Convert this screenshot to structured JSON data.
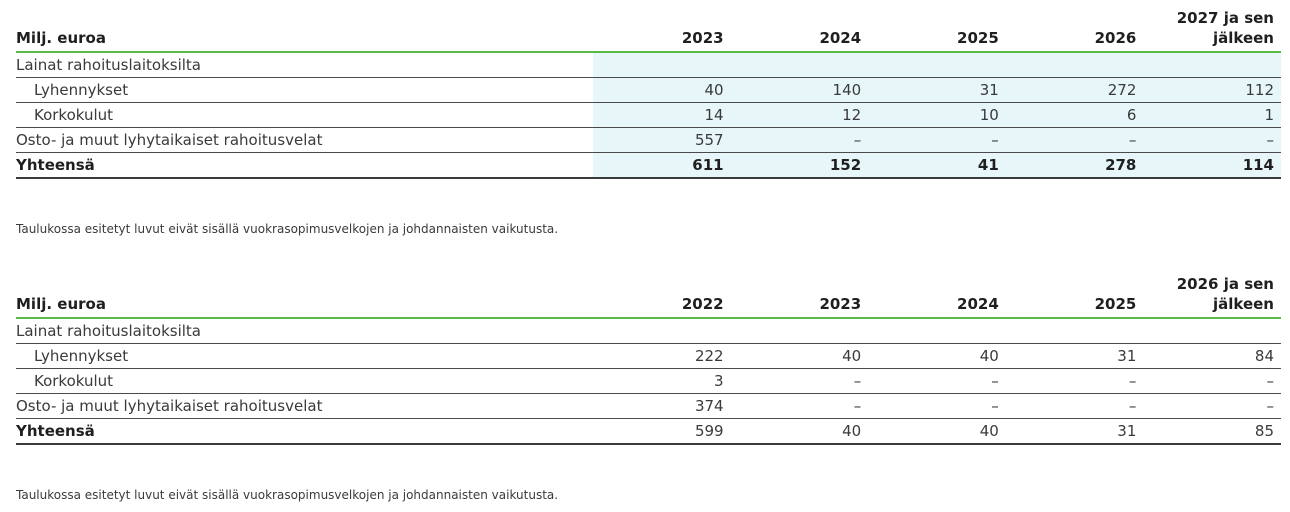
{
  "table1": {
    "header": {
      "label": "Milj. euroa",
      "cols": [
        "2023",
        "2024",
        "2025",
        "2026",
        "2027 ja sen jälkeen"
      ]
    },
    "section_label": "Lainat rahoituslaitoksilta",
    "rows": [
      {
        "label": "Lyhennykset",
        "values": [
          "40",
          "140",
          "31",
          "272",
          "112"
        ]
      },
      {
        "label": "Korkokulut",
        "values": [
          "14",
          "12",
          "10",
          "6",
          "1"
        ]
      },
      {
        "label": "Osto- ja muut lyhytaikaiset rahoitusvelat",
        "values": [
          "557",
          "–",
          "–",
          "–",
          "–"
        ]
      }
    ],
    "total": {
      "label": "Yhteensä",
      "values": [
        "611",
        "152",
        "41",
        "278",
        "114"
      ]
    },
    "note": "Taulukossa esitetyt luvut eivät sisällä vuokrasopimusvelkojen ja johdannaisten vaikutusta."
  },
  "table2": {
    "header": {
      "label": "Milj. euroa",
      "cols": [
        "2022",
        "2023",
        "2024",
        "2025",
        "2026 ja sen jälkeen"
      ]
    },
    "section_label": "Lainat rahoituslaitoksilta",
    "rows": [
      {
        "label": "Lyhennykset",
        "values": [
          "222",
          "40",
          "40",
          "31",
          "84"
        ]
      },
      {
        "label": "Korkokulut",
        "values": [
          "3",
          "–",
          "–",
          "–",
          "–"
        ]
      },
      {
        "label": "Osto- ja muut lyhytaikaiset rahoitusvelat",
        "values": [
          "374",
          "–",
          "–",
          "–",
          "–"
        ]
      }
    ],
    "total": {
      "label": "Yhteensä",
      "values": [
        "599",
        "40",
        "40",
        "31",
        "85"
      ]
    },
    "note": "Taulukossa esitetyt luvut eivät sisällä vuokrasopimusvelkojen ja johdannaisten vaikutusta."
  },
  "colors": {
    "accent_green": "#58b947",
    "shade_cyan": "#e6f6f9"
  }
}
